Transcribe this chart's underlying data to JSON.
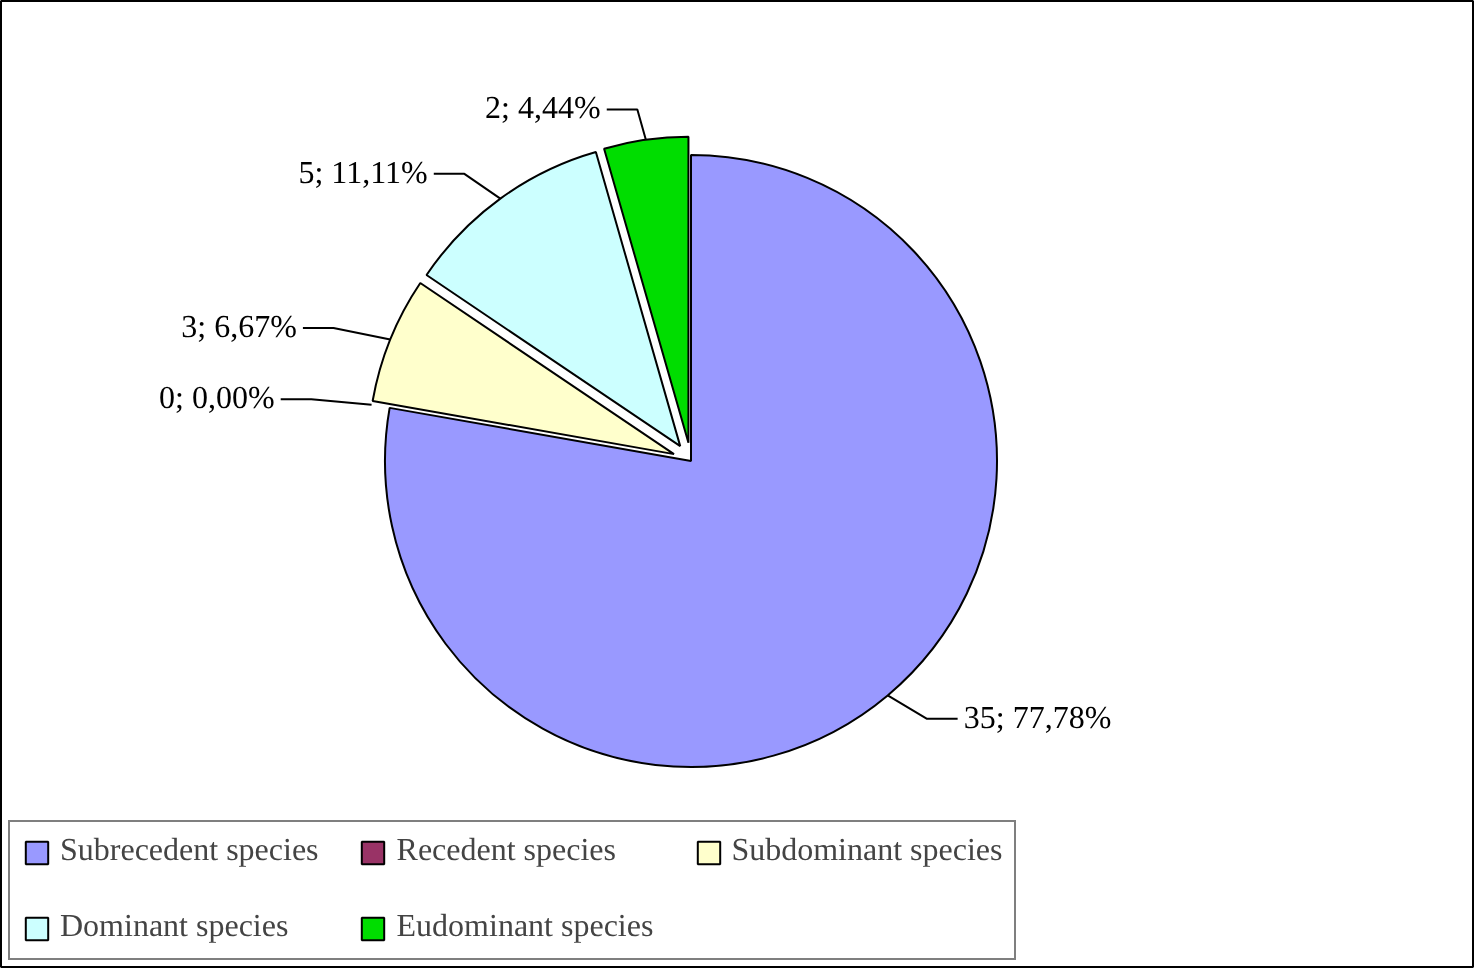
{
  "chart_data": {
    "type": "pie",
    "categories": [
      "Subrecedent species",
      "Recedent species",
      "Subdominant species",
      "Dominant species",
      "Eudominant species"
    ],
    "values": [
      35,
      0,
      3,
      5,
      2
    ],
    "colors": [
      "#9999ff",
      "#993366",
      "#ffffcc",
      "#ccffff",
      "#00dd00"
    ],
    "value_labels": [
      "35; 77,78%",
      "0; 0,00%",
      "3; 6,67%",
      "5; 11,11%",
      "2; 4,44%"
    ],
    "legend": "bottom"
  }
}
